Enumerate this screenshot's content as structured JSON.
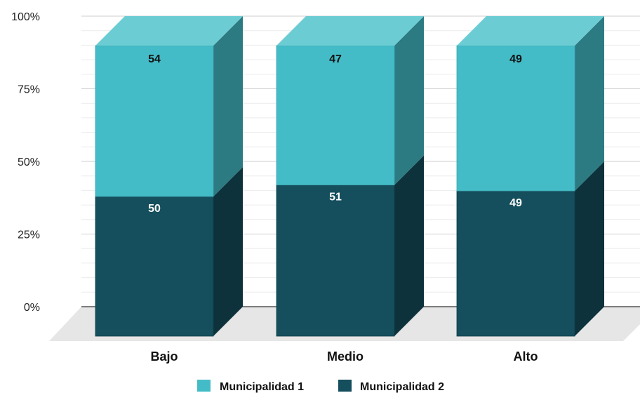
{
  "chart_data": {
    "type": "bar",
    "stacked": true,
    "three_d": true,
    "title": "",
    "xlabel": "",
    "ylabel": "",
    "categories": [
      "Bajo",
      "Medio",
      "Alto"
    ],
    "series": [
      {
        "name": "Municipalidad 2",
        "values": [
          50,
          51,
          49
        ],
        "labels": [
          "50",
          "51",
          "49"
        ],
        "color": "#154e5c",
        "side_color": "#0d323b",
        "label_color": "#ffffff"
      },
      {
        "name": "Municipalidad 1",
        "values": [
          54,
          47,
          49
        ],
        "labels": [
          "54",
          "47",
          "49"
        ],
        "color": "#44bcc7",
        "side_color": "#2d7b82",
        "top_color": "#6cccd4",
        "label_color": "#111111"
      }
    ],
    "y_ticks": [
      "0%",
      "25%",
      "50%",
      "75%",
      "100%"
    ],
    "ylim": [
      0,
      100
    ],
    "grid": true,
    "legend": "bottom-center"
  }
}
